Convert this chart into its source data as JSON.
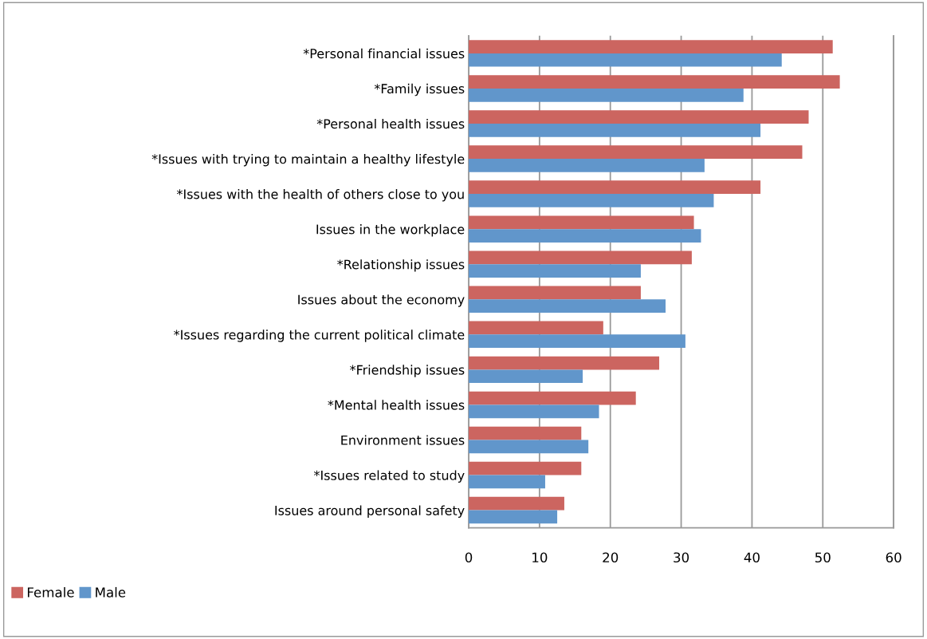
{
  "chart_data": {
    "type": "bar",
    "orientation": "horizontal",
    "categories": [
      "*Personal financial issues",
      "*Family issues",
      "*Personal health issues",
      "*Issues with trying to maintain a healthy lifestyle",
      "*Issues with the health of others close to you",
      "Issues in the workplace",
      "*Relationship issues",
      "Issues about the economy",
      "*Issues regarding the current political climate",
      "*Friendship issues",
      "*Mental health issues",
      "Environment issues",
      "*Issues related to study",
      "Issues around personal safety"
    ],
    "series": [
      {
        "name": "Female",
        "color": "#cc6560",
        "values": [
          51.4,
          52.4,
          48.0,
          47.1,
          41.2,
          31.8,
          31.5,
          24.3,
          19.0,
          26.9,
          23.6,
          15.9,
          15.9,
          13.5
        ]
      },
      {
        "name": "Male",
        "color": "#6196cb",
        "values": [
          44.2,
          38.8,
          41.2,
          33.3,
          34.6,
          32.8,
          24.3,
          27.8,
          30.6,
          16.1,
          18.4,
          16.9,
          10.8,
          12.5
        ]
      }
    ],
    "xlim": [
      0,
      60
    ],
    "xticks": [
      0,
      10,
      20,
      30,
      40,
      50,
      60
    ],
    "grid": "x",
    "legend": "bottom left"
  }
}
